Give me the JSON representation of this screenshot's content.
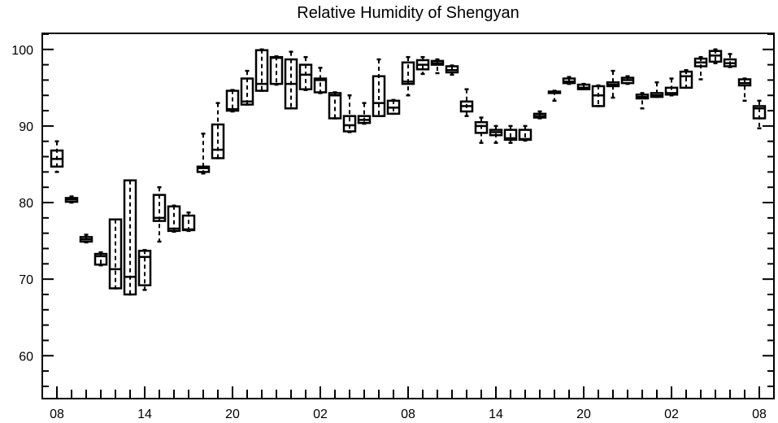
{
  "chart_data": {
    "type": "box",
    "title": "Relative Humidity of Shengyan",
    "ylim": [
      54.4,
      102.1
    ],
    "y_ticks": [
      60,
      70,
      80,
      90,
      100
    ],
    "x_tick_labels": [
      "08",
      "14",
      "20",
      "02",
      "08",
      "14",
      "20",
      "02",
      "08"
    ],
    "grid": false,
    "legend": "none",
    "colors": {
      "stroke": "#000000",
      "background": "#ffffff"
    },
    "boxes": [
      {
        "hour": 8,
        "min": 84.0,
        "q1": 84.7,
        "median": 85.7,
        "q3": 86.8,
        "max": 88.0
      },
      {
        "hour": 9,
        "min": 80.0,
        "q1": 80.1,
        "median": 80.4,
        "q3": 80.6,
        "max": 80.8
      },
      {
        "hour": 10,
        "min": 74.8,
        "q1": 74.9,
        "median": 75.2,
        "q3": 75.5,
        "max": 75.8
      },
      {
        "hour": 11,
        "min": 71.8,
        "q1": 71.9,
        "median": 73.0,
        "q3": 73.3,
        "max": 73.5
      },
      {
        "hour": 12,
        "min": 68.8,
        "q1": 68.8,
        "median": 71.3,
        "q3": 77.8,
        "max": 77.8
      },
      {
        "hour": 13,
        "min": 68.0,
        "q1": 68.0,
        "median": 70.3,
        "q3": 82.9,
        "max": 82.9
      },
      {
        "hour": 14,
        "min": 68.6,
        "q1": 69.2,
        "median": 72.9,
        "q3": 73.7,
        "max": 73.8
      },
      {
        "hour": 15,
        "min": 74.9,
        "q1": 77.6,
        "median": 78.0,
        "q3": 81.0,
        "max": 82.0
      },
      {
        "hour": 16,
        "min": 76.2,
        "q1": 76.3,
        "median": 76.6,
        "q3": 79.5,
        "max": 79.6
      },
      {
        "hour": 17,
        "min": 76.3,
        "q1": 76.4,
        "median": 76.5,
        "q3": 78.3,
        "max": 78.7
      },
      {
        "hour": 18,
        "min": 83.8,
        "q1": 84.0,
        "median": 84.5,
        "q3": 84.7,
        "max": 89.0
      },
      {
        "hour": 19,
        "min": 85.8,
        "q1": 85.8,
        "median": 86.9,
        "q3": 90.2,
        "max": 93.0
      },
      {
        "hour": 20,
        "min": 91.9,
        "q1": 92.0,
        "median": 92.2,
        "q3": 94.6,
        "max": 94.7
      },
      {
        "hour": 21,
        "min": 92.8,
        "q1": 92.8,
        "median": 93.2,
        "q3": 96.2,
        "max": 97.2
      },
      {
        "hour": 22,
        "min": 94.6,
        "q1": 94.6,
        "median": 95.5,
        "q3": 99.9,
        "max": 100.0
      },
      {
        "hour": 23,
        "min": 95.4,
        "q1": 95.5,
        "median": 98.9,
        "q3": 99.0,
        "max": 99.1
      },
      {
        "hour": 0,
        "min": 92.3,
        "q1": 92.3,
        "median": 95.5,
        "q3": 98.7,
        "max": 99.7
      },
      {
        "hour": 1,
        "min": 94.7,
        "q1": 94.8,
        "median": 96.7,
        "q3": 98.0,
        "max": 99.0
      },
      {
        "hour": 2,
        "min": 94.3,
        "q1": 94.4,
        "median": 96.0,
        "q3": 96.2,
        "max": 97.6
      },
      {
        "hour": 3,
        "min": 91.0,
        "q1": 91.0,
        "median": 94.0,
        "q3": 94.3,
        "max": 94.4
      },
      {
        "hour": 4,
        "min": 89.2,
        "q1": 89.3,
        "median": 90.1,
        "q3": 91.3,
        "max": 94.0
      },
      {
        "hour": 5,
        "min": 90.3,
        "q1": 90.4,
        "median": 90.8,
        "q3": 91.3,
        "max": 93.0
      },
      {
        "hour": 6,
        "min": 91.3,
        "q1": 91.3,
        "median": 93.0,
        "q3": 96.5,
        "max": 98.7
      },
      {
        "hour": 7,
        "min": 91.6,
        "q1": 91.6,
        "median": 92.4,
        "q3": 93.3,
        "max": 93.4
      },
      {
        "hour": 8,
        "min": 94.0,
        "q1": 95.5,
        "median": 95.8,
        "q3": 98.3,
        "max": 99.0
      },
      {
        "hour": 9,
        "min": 96.8,
        "q1": 97.4,
        "median": 98.0,
        "q3": 98.6,
        "max": 99.0
      },
      {
        "hour": 10,
        "min": 96.9,
        "q1": 98.0,
        "median": 98.2,
        "q3": 98.5,
        "max": 98.7
      },
      {
        "hour": 11,
        "min": 96.7,
        "q1": 97.0,
        "median": 97.3,
        "q3": 97.8,
        "max": 97.9
      },
      {
        "hour": 12,
        "min": 91.3,
        "q1": 91.9,
        "median": 92.6,
        "q3": 93.2,
        "max": 94.8
      },
      {
        "hour": 13,
        "min": 87.8,
        "q1": 89.1,
        "median": 90.0,
        "q3": 90.5,
        "max": 91.1
      },
      {
        "hour": 14,
        "min": 87.8,
        "q1": 88.8,
        "median": 89.2,
        "q3": 89.5,
        "max": 90.0
      },
      {
        "hour": 15,
        "min": 87.8,
        "q1": 88.2,
        "median": 88.4,
        "q3": 89.5,
        "max": 90.0
      },
      {
        "hour": 16,
        "min": 88.1,
        "q1": 88.2,
        "median": 88.3,
        "q3": 89.5,
        "max": 90.0
      },
      {
        "hour": 17,
        "min": 91.0,
        "q1": 91.1,
        "median": 91.3,
        "q3": 91.6,
        "max": 91.9
      },
      {
        "hour": 18,
        "min": 93.3,
        "q1": 94.3,
        "median": 94.4,
        "q3": 94.5,
        "max": 94.6
      },
      {
        "hour": 19,
        "min": 95.5,
        "q1": 95.6,
        "median": 95.8,
        "q3": 96.2,
        "max": 96.4
      },
      {
        "hour": 20,
        "min": 94.8,
        "q1": 94.8,
        "median": 95.0,
        "q3": 95.4,
        "max": 95.5
      },
      {
        "hour": 21,
        "min": 92.6,
        "q1": 92.6,
        "median": 94.0,
        "q3": 95.2,
        "max": 95.3
      },
      {
        "hour": 22,
        "min": 93.7,
        "q1": 95.2,
        "median": 95.4,
        "q3": 95.7,
        "max": 97.2
      },
      {
        "hour": 23,
        "min": 95.5,
        "q1": 95.6,
        "median": 96.0,
        "q3": 96.3,
        "max": 96.5
      },
      {
        "hour": 0,
        "min": 92.3,
        "q1": 93.6,
        "median": 93.8,
        "q3": 94.1,
        "max": 94.3
      },
      {
        "hour": 1,
        "min": 93.8,
        "q1": 93.8,
        "median": 94.0,
        "q3": 94.3,
        "max": 95.7
      },
      {
        "hour": 2,
        "min": 94.0,
        "q1": 94.1,
        "median": 94.3,
        "q3": 95.0,
        "max": 96.2
      },
      {
        "hour": 3,
        "min": 95.0,
        "q1": 95.0,
        "median": 96.5,
        "q3": 97.1,
        "max": 97.3
      },
      {
        "hour": 4,
        "min": 96.1,
        "q1": 97.8,
        "median": 98.3,
        "q3": 98.8,
        "max": 99.0
      },
      {
        "hour": 5,
        "min": 98.2,
        "q1": 98.4,
        "median": 99.2,
        "q3": 99.8,
        "max": 100.0
      },
      {
        "hour": 6,
        "min": 97.7,
        "q1": 97.8,
        "median": 98.2,
        "q3": 98.7,
        "max": 99.4
      },
      {
        "hour": 7,
        "min": 93.3,
        "q1": 95.3,
        "median": 95.6,
        "q3": 96.1,
        "max": 96.2
      },
      {
        "hour": 8,
        "min": 89.7,
        "q1": 91.0,
        "median": 92.3,
        "q3": 92.6,
        "max": 93.3
      }
    ]
  }
}
